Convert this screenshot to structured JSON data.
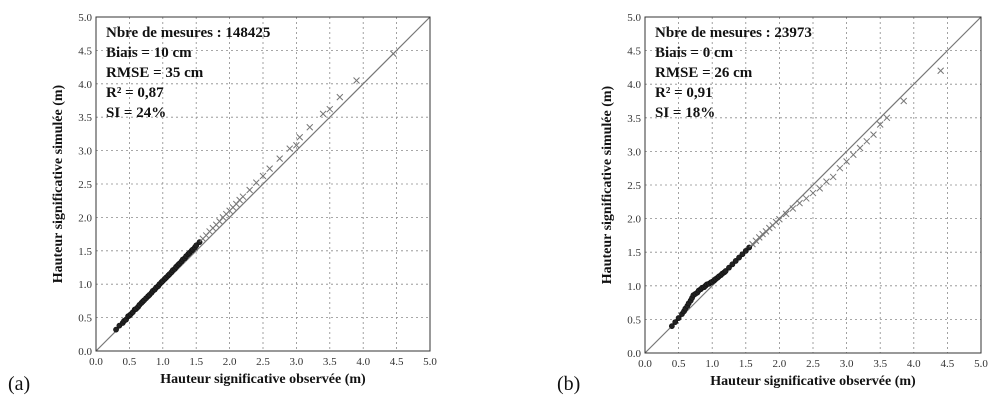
{
  "chart_data": [
    {
      "type": "scatter",
      "panel_label": "(a)",
      "xlabel": "Hauteur significative observée (m)",
      "ylabel": "Hauteur significative simulée (m)",
      "xlim": [
        0.0,
        5.0
      ],
      "ylim": [
        0.0,
        5.0
      ],
      "xticks": [
        "0.0",
        "0.5",
        "1.0",
        "1.5",
        "2.0",
        "2.5",
        "3.0",
        "3.5",
        "4.0",
        "4.5",
        "5.0"
      ],
      "yticks": [
        "0.0",
        "0.5",
        "1.0",
        "1.5",
        "2.0",
        "2.5",
        "3.0",
        "3.5",
        "4.0",
        "4.5",
        "5.0"
      ],
      "grid": true,
      "reference_line": "y = x",
      "stats": [
        "Nbre de mesures : 148425",
        "Biais = 10 cm",
        "RMSE = 35 cm",
        "R² = 0,87",
        "SI = 24%"
      ],
      "points": [
        [
          0.3,
          0.32
        ],
        [
          0.35,
          0.38
        ],
        [
          0.4,
          0.42
        ],
        [
          0.42,
          0.45
        ],
        [
          0.45,
          0.47
        ],
        [
          0.48,
          0.52
        ],
        [
          0.5,
          0.53
        ],
        [
          0.52,
          0.55
        ],
        [
          0.55,
          0.58
        ],
        [
          0.58,
          0.62
        ],
        [
          0.6,
          0.63
        ],
        [
          0.63,
          0.66
        ],
        [
          0.65,
          0.69
        ],
        [
          0.68,
          0.72
        ],
        [
          0.7,
          0.74
        ],
        [
          0.72,
          0.76
        ],
        [
          0.75,
          0.79
        ],
        [
          0.78,
          0.82
        ],
        [
          0.8,
          0.84
        ],
        [
          0.83,
          0.87
        ],
        [
          0.85,
          0.9
        ],
        [
          0.88,
          0.92
        ],
        [
          0.9,
          0.95
        ],
        [
          0.93,
          0.97
        ],
        [
          0.95,
          1.0
        ],
        [
          0.98,
          1.03
        ],
        [
          1.0,
          1.05
        ],
        [
          1.03,
          1.08
        ],
        [
          1.05,
          1.1
        ],
        [
          1.08,
          1.13
        ],
        [
          1.1,
          1.15
        ],
        [
          1.13,
          1.18
        ],
        [
          1.15,
          1.21
        ],
        [
          1.18,
          1.23
        ],
        [
          1.2,
          1.26
        ],
        [
          1.23,
          1.29
        ],
        [
          1.25,
          1.31
        ],
        [
          1.28,
          1.34
        ],
        [
          1.3,
          1.37
        ],
        [
          1.33,
          1.39
        ],
        [
          1.35,
          1.42
        ],
        [
          1.38,
          1.45
        ],
        [
          1.4,
          1.47
        ],
        [
          1.43,
          1.5
        ],
        [
          1.45,
          1.52
        ],
        [
          1.48,
          1.55
        ],
        [
          1.5,
          1.58
        ],
        [
          1.55,
          1.63
        ],
        [
          1.6,
          1.68
        ],
        [
          1.65,
          1.73
        ],
        [
          1.7,
          1.79
        ],
        [
          1.75,
          1.84
        ],
        [
          1.8,
          1.89
        ],
        [
          1.85,
          1.94
        ],
        [
          1.9,
          2.0
        ],
        [
          1.95,
          2.05
        ],
        [
          2.0,
          2.1
        ],
        [
          2.05,
          2.15
        ],
        [
          2.1,
          2.2
        ],
        [
          2.15,
          2.26
        ],
        [
          2.2,
          2.31
        ],
        [
          2.3,
          2.41
        ],
        [
          2.4,
          2.52
        ],
        [
          2.5,
          2.62
        ],
        [
          2.6,
          2.73
        ],
        [
          2.75,
          2.88
        ],
        [
          2.9,
          3.03
        ],
        [
          3.0,
          3.08
        ],
        [
          3.05,
          3.2
        ],
        [
          3.2,
          3.35
        ],
        [
          3.4,
          3.55
        ],
        [
          3.5,
          3.62
        ],
        [
          3.65,
          3.8
        ],
        [
          3.9,
          4.05
        ],
        [
          4.45,
          4.45
        ]
      ]
    },
    {
      "type": "scatter",
      "panel_label": "(b)",
      "xlabel": "Hauteur significative observée (m)",
      "ylabel": "Hauteur significative simulée (m)",
      "xlim": [
        0.0,
        5.0
      ],
      "ylim": [
        0.0,
        5.0
      ],
      "xticks": [
        "0.0",
        "0.5",
        "1.0",
        "1.5",
        "2.0",
        "2.5",
        "3.0",
        "3.5",
        "4.0",
        "4.5",
        "5.0"
      ],
      "yticks": [
        "0.0",
        "0.5",
        "1.0",
        "1.5",
        "2.0",
        "2.5",
        "3.0",
        "3.5",
        "4.0",
        "4.5",
        "5.0"
      ],
      "grid": true,
      "reference_line": "y = x",
      "stats": [
        "Nbre de mesures : 23973",
        "Biais = 0 cm",
        "RMSE = 26 cm",
        "R² = 0,91",
        "SI = 18%"
      ],
      "points": [
        [
          0.4,
          0.4
        ],
        [
          0.45,
          0.46
        ],
        [
          0.5,
          0.52
        ],
        [
          0.55,
          0.58
        ],
        [
          0.58,
          0.62
        ],
        [
          0.6,
          0.66
        ],
        [
          0.63,
          0.7
        ],
        [
          0.65,
          0.74
        ],
        [
          0.68,
          0.78
        ],
        [
          0.7,
          0.82
        ],
        [
          0.72,
          0.86
        ],
        [
          0.75,
          0.88
        ],
        [
          0.78,
          0.9
        ],
        [
          0.8,
          0.93
        ],
        [
          0.83,
          0.95
        ],
        [
          0.85,
          0.97
        ],
        [
          0.88,
          0.98
        ],
        [
          0.9,
          1.0
        ],
        [
          0.92,
          1.02
        ],
        [
          0.95,
          1.03
        ],
        [
          0.98,
          1.05
        ],
        [
          1.0,
          1.06
        ],
        [
          1.03,
          1.08
        ],
        [
          1.05,
          1.1
        ],
        [
          1.08,
          1.12
        ],
        [
          1.1,
          1.14
        ],
        [
          1.13,
          1.16
        ],
        [
          1.15,
          1.18
        ],
        [
          1.18,
          1.2
        ],
        [
          1.2,
          1.22
        ],
        [
          1.25,
          1.27
        ],
        [
          1.3,
          1.32
        ],
        [
          1.35,
          1.37
        ],
        [
          1.4,
          1.42
        ],
        [
          1.45,
          1.47
        ],
        [
          1.5,
          1.52
        ],
        [
          1.55,
          1.57
        ],
        [
          1.6,
          1.62
        ],
        [
          1.65,
          1.67
        ],
        [
          1.7,
          1.72
        ],
        [
          1.75,
          1.77
        ],
        [
          1.8,
          1.81
        ],
        [
          1.85,
          1.86
        ],
        [
          1.9,
          1.9
        ],
        [
          1.95,
          1.95
        ],
        [
          2.0,
          1.99
        ],
        [
          2.1,
          2.07
        ],
        [
          2.2,
          2.15
        ],
        [
          2.3,
          2.23
        ],
        [
          2.4,
          2.3
        ],
        [
          2.5,
          2.38
        ],
        [
          2.6,
          2.45
        ],
        [
          2.7,
          2.55
        ],
        [
          2.8,
          2.62
        ],
        [
          2.9,
          2.75
        ],
        [
          3.0,
          2.85
        ],
        [
          3.1,
          2.95
        ],
        [
          3.2,
          3.05
        ],
        [
          3.3,
          3.15
        ],
        [
          3.4,
          3.25
        ],
        [
          3.5,
          3.4
        ],
        [
          3.6,
          3.5
        ],
        [
          3.85,
          3.75
        ],
        [
          4.4,
          4.2
        ]
      ]
    }
  ]
}
